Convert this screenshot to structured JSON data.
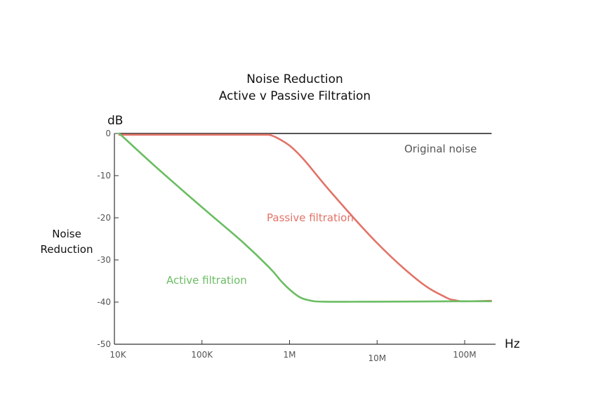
{
  "chart_data": {
    "type": "line",
    "title": [
      "Noise Reduction",
      "Active v Passive Filtration"
    ],
    "y_unit": "dB",
    "x_unit": "Hz",
    "ylabel": [
      "Noise",
      "Reduction"
    ],
    "x_scale": "log",
    "xlim": [
      10000,
      200000000
    ],
    "ylim": [
      -50,
      0
    ],
    "x_ticks": [
      {
        "value": 10000,
        "label": "10K"
      },
      {
        "value": 100000,
        "label": "100K"
      },
      {
        "value": 1000000,
        "label": "1M"
      },
      {
        "value": 10000000,
        "label": "10M"
      },
      {
        "value": 100000000,
        "label": "100M"
      }
    ],
    "y_ticks": [
      {
        "value": 0,
        "label": "0"
      },
      {
        "value": -10,
        "label": "-10"
      },
      {
        "value": -20,
        "label": "-20"
      },
      {
        "value": -30,
        "label": "-30"
      },
      {
        "value": -40,
        "label": "-40"
      },
      {
        "value": -50,
        "label": "-50"
      }
    ],
    "grid": false,
    "series": [
      {
        "name": "Original noise",
        "color": "#555555",
        "x": [
          10000,
          200000000
        ],
        "y": [
          0,
          0
        ]
      },
      {
        "name": "Passive filtration",
        "color": "#e27368",
        "x": [
          11000,
          100000,
          500000,
          600000,
          700000,
          900000,
          1100000,
          1500000,
          3000000,
          10000000,
          30000000,
          60000000,
          80000000,
          100000000,
          200000000
        ],
        "y": [
          -0.3,
          -0.3,
          -0.3,
          -0.4,
          -0.9,
          -2.2,
          -3.6,
          -6.5,
          -14,
          -26,
          -35,
          -38.8,
          -39.6,
          -39.8,
          -39.7
        ]
      },
      {
        "name": "Active filtration",
        "color": "#6bbd63",
        "x": [
          10000,
          30000,
          100000,
          300000,
          600000,
          800000,
          1000000,
          1300000,
          1700000,
          2500000,
          10000000,
          100000000,
          200000000
        ],
        "y": [
          0,
          -8,
          -17.5,
          -26,
          -32,
          -35,
          -37,
          -38.8,
          -39.6,
          -39.9,
          -39.9,
          -39.8,
          -39.8
        ]
      }
    ],
    "annotations": [
      {
        "text": "Original noise",
        "series": "Original noise",
        "color": "#555555"
      },
      {
        "text": "Passive filtration",
        "series": "Passive filtration",
        "color": "#e27368"
      },
      {
        "text": "Active filtration",
        "series": "Active filtration",
        "color": "#6bbd63"
      }
    ]
  }
}
